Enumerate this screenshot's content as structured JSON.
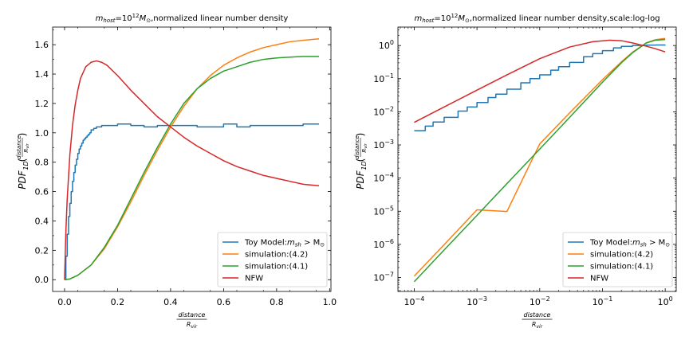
{
  "chart_data": [
    {
      "type": "line",
      "title": "m_host=10^12 M_⊙,normalized linear number density",
      "title_parts": [
        "m",
        "host",
        "=10",
        "12",
        "M",
        "⊙",
        ",normalized linear number density"
      ],
      "xlabel_num": "distance",
      "xlabel_den": "R_vir",
      "xlabel_den_parts": [
        "R",
        "vir"
      ],
      "ylabel_parts": [
        "PDF",
        "1D",
        "(",
        "distance",
        "R",
        "vir",
        ")"
      ],
      "xscale": "linear",
      "yscale": "linear",
      "xlim": [
        -0.045,
        1.005
      ],
      "ylim": [
        -0.08,
        1.72
      ],
      "xticks": [
        0.0,
        0.2,
        0.4,
        0.6,
        0.8,
        1.0
      ],
      "xtick_labels": [
        "0.0",
        "0.2",
        "0.4",
        "0.6",
        "0.8",
        "1.0"
      ],
      "yticks": [
        0.0,
        0.2,
        0.4,
        0.6,
        0.8,
        1.0,
        1.2,
        1.4,
        1.6
      ],
      "ytick_labels": [
        "0.0",
        "0.2",
        "0.4",
        "0.6",
        "0.8",
        "1.0",
        "1.2",
        "1.4",
        "1.6"
      ],
      "grid": false,
      "legend_position": "lower-right",
      "series": [
        {
          "name": "Toy Model:m_sh > M_⊙",
          "name_parts": [
            "Toy Model:",
            "m",
            "sh",
            " > M",
            "⊙"
          ],
          "color": "#1f77b4",
          "step": true,
          "x": [
            0.0,
            0.005,
            0.01,
            0.015,
            0.02,
            0.025,
            0.03,
            0.035,
            0.04,
            0.045,
            0.05,
            0.055,
            0.06,
            0.065,
            0.07,
            0.075,
            0.08,
            0.085,
            0.09,
            0.095,
            0.1,
            0.11,
            0.12,
            0.13,
            0.14,
            0.16,
            0.18,
            0.2,
            0.25,
            0.3,
            0.35,
            0.4,
            0.45,
            0.5,
            0.55,
            0.6,
            0.65,
            0.7,
            0.75,
            0.8,
            0.85,
            0.9,
            0.96
          ],
          "y": [
            0.0,
            0.16,
            0.31,
            0.43,
            0.52,
            0.6,
            0.67,
            0.73,
            0.78,
            0.82,
            0.86,
            0.89,
            0.91,
            0.93,
            0.95,
            0.96,
            0.97,
            0.98,
            0.99,
            1.0,
            1.02,
            1.03,
            1.04,
            1.04,
            1.05,
            1.05,
            1.05,
            1.06,
            1.05,
            1.04,
            1.05,
            1.05,
            1.05,
            1.04,
            1.04,
            1.06,
            1.04,
            1.05,
            1.05,
            1.05,
            1.05,
            1.06,
            1.06
          ]
        },
        {
          "name": "simulation:(4.2)",
          "color": "#ff7f0e",
          "x": [
            0.0,
            0.02,
            0.05,
            0.1,
            0.15,
            0.2,
            0.25,
            0.3,
            0.35,
            0.4,
            0.45,
            0.5,
            0.55,
            0.6,
            0.65,
            0.7,
            0.75,
            0.8,
            0.85,
            0.9,
            0.96
          ],
          "y": [
            0.0,
            0.005,
            0.03,
            0.1,
            0.21,
            0.36,
            0.53,
            0.71,
            0.88,
            1.04,
            1.18,
            1.3,
            1.39,
            1.46,
            1.51,
            1.55,
            1.58,
            1.6,
            1.62,
            1.63,
            1.64
          ]
        },
        {
          "name": "simulation:(4.1)",
          "color": "#2ca02c",
          "x": [
            0.0,
            0.02,
            0.05,
            0.1,
            0.15,
            0.2,
            0.25,
            0.3,
            0.35,
            0.4,
            0.45,
            0.5,
            0.55,
            0.6,
            0.65,
            0.7,
            0.75,
            0.8,
            0.85,
            0.9,
            0.96
          ],
          "y": [
            0.0,
            0.005,
            0.03,
            0.1,
            0.22,
            0.37,
            0.55,
            0.73,
            0.9,
            1.06,
            1.2,
            1.3,
            1.37,
            1.42,
            1.45,
            1.48,
            1.5,
            1.51,
            1.515,
            1.52,
            1.52
          ]
        },
        {
          "name": "NFW",
          "color": "#d62728",
          "x": [
            0.0,
            0.005,
            0.01,
            0.02,
            0.03,
            0.04,
            0.05,
            0.06,
            0.08,
            0.1,
            0.12,
            0.14,
            0.16,
            0.2,
            0.25,
            0.3,
            0.35,
            0.4,
            0.45,
            0.5,
            0.55,
            0.6,
            0.65,
            0.7,
            0.75,
            0.8,
            0.85,
            0.9,
            0.96
          ],
          "y": [
            0.0,
            0.33,
            0.55,
            0.85,
            1.05,
            1.19,
            1.29,
            1.37,
            1.45,
            1.48,
            1.49,
            1.48,
            1.46,
            1.39,
            1.29,
            1.2,
            1.11,
            1.04,
            0.97,
            0.91,
            0.86,
            0.81,
            0.77,
            0.74,
            0.71,
            0.69,
            0.67,
            0.65,
            0.64
          ]
        }
      ]
    },
    {
      "type": "line",
      "title": "m_host=10^12 M_⊙,normalized linear number density,scale:log-log",
      "title_parts": [
        "m",
        "host",
        "=10",
        "12",
        "M",
        "⊙",
        ",normalized linear number density,scale:log-log"
      ],
      "xlabel_num": "distance",
      "xlabel_den": "R_vir",
      "xlabel_den_parts": [
        "R",
        "vir"
      ],
      "ylabel_parts": [
        "PDF",
        "1D",
        "(",
        "distance",
        "R",
        "vir",
        ")"
      ],
      "xscale": "log",
      "yscale": "log",
      "xlim": [
        5.5e-05,
        1.5
      ],
      "ylim": [
        3.8e-08,
        3.6
      ],
      "xticks": [
        0.0001,
        0.001,
        0.01,
        0.1,
        1
      ],
      "xtick_labels": [
        [
          "10",
          "−4"
        ],
        [
          "10",
          "−3"
        ],
        [
          "10",
          "−2"
        ],
        [
          "10",
          "−1"
        ],
        [
          "10",
          "0"
        ]
      ],
      "yticks": [
        1e-07,
        1e-06,
        1e-05,
        0.0001,
        0.001,
        0.01,
        0.1,
        1
      ],
      "ytick_labels": [
        [
          "10",
          "−7"
        ],
        [
          "10",
          "−6"
        ],
        [
          "10",
          "−5"
        ],
        [
          "10",
          "−4"
        ],
        [
          "10",
          "−3"
        ],
        [
          "10",
          "−2"
        ],
        [
          "10",
          "−1"
        ],
        [
          "10",
          "0"
        ]
      ],
      "grid": false,
      "legend_position": "lower-right",
      "series": [
        {
          "name": "Toy Model:m_sh > M_⊙",
          "name_parts": [
            "Toy Model:",
            "m",
            "sh",
            " > M",
            "⊙"
          ],
          "color": "#1f77b4",
          "step": true,
          "x": [
            0.0001,
            0.00015,
            0.0002,
            0.0003,
            0.0005,
            0.0007,
            0.001,
            0.0015,
            0.002,
            0.003,
            0.005,
            0.007,
            0.01,
            0.015,
            0.02,
            0.03,
            0.05,
            0.07,
            0.1,
            0.15,
            0.2,
            0.3,
            0.5,
            0.7,
            1.0
          ],
          "y": [
            0.0027,
            0.0037,
            0.0049,
            0.0068,
            0.0105,
            0.014,
            0.019,
            0.027,
            0.034,
            0.048,
            0.075,
            0.1,
            0.13,
            0.18,
            0.23,
            0.31,
            0.46,
            0.57,
            0.7,
            0.85,
            0.94,
            1.0,
            1.03,
            1.04,
            1.05
          ]
        },
        {
          "name": "simulation:(4.2)",
          "color": "#ff7f0e",
          "x": [
            0.0001,
            0.0003,
            0.001,
            0.003,
            0.01,
            0.03,
            0.1,
            0.2,
            0.3,
            0.5,
            0.7,
            1.0
          ],
          "y": [
            1.1e-07,
            9.8e-07,
            1.1e-05,
            9.8e-06,
            0.00107,
            0.0093,
            0.093,
            0.32,
            0.62,
            1.2,
            1.5,
            1.64
          ]
        },
        {
          "name": "simulation:(4.1)",
          "color": "#2ca02c",
          "x": [
            0.0001,
            0.0003,
            0.001,
            0.003,
            0.01,
            0.03,
            0.1,
            0.2,
            0.3,
            0.5,
            0.7,
            1.0
          ],
          "y": [
            7.5e-08,
            6.8e-07,
            7.5e-06,
            6.8e-05,
            0.00075,
            0.0068,
            0.078,
            0.3,
            0.6,
            1.2,
            1.45,
            1.52
          ]
        },
        {
          "name": "NFW",
          "color": "#d62728",
          "x": [
            0.0001,
            0.0003,
            0.001,
            0.003,
            0.01,
            0.03,
            0.07,
            0.13,
            0.2,
            0.3,
            0.5,
            0.7,
            1.0
          ],
          "y": [
            0.0048,
            0.014,
            0.045,
            0.13,
            0.4,
            0.9,
            1.3,
            1.45,
            1.4,
            1.2,
            0.95,
            0.8,
            0.64
          ]
        }
      ]
    }
  ]
}
